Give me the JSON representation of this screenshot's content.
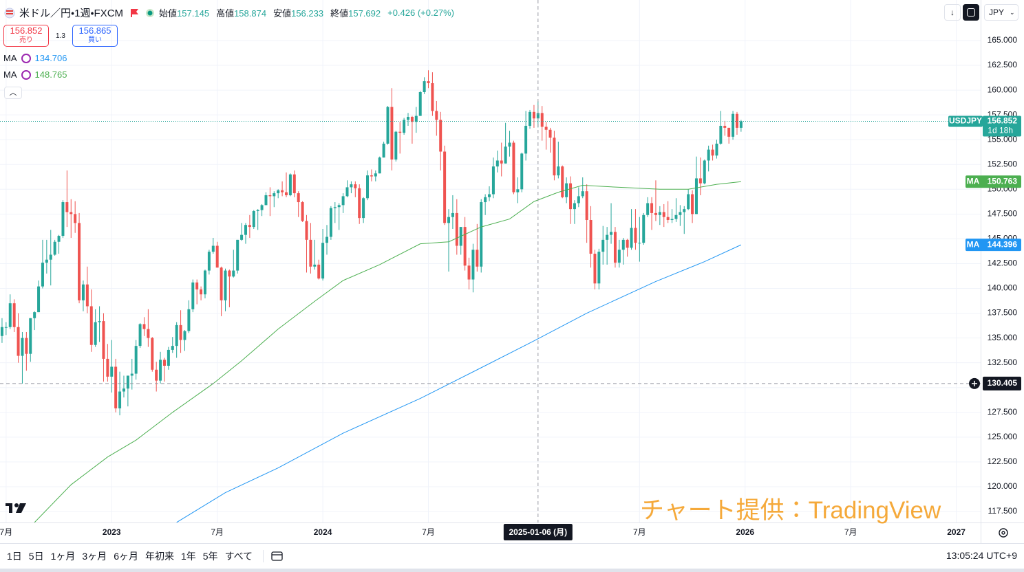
{
  "header": {
    "symbol": "米ドル／円・1週・FXCM",
    "ohlc": [
      {
        "label": "始値",
        "value": "157.145"
      },
      {
        "label": "高値",
        "value": "158.874"
      },
      {
        "label": "安値",
        "value": "156.233"
      },
      {
        "label": "終値",
        "value": "157.692"
      }
    ],
    "change": "+0.426 (+0.27%)"
  },
  "trade": {
    "sell_price": "156.852",
    "sell_label": "売り",
    "spread": "1.3",
    "buy_price": "156.865",
    "buy_label": "買い"
  },
  "indicators": [
    {
      "name": "MA",
      "value": "134.706"
    },
    {
      "name": "MA",
      "value": "148.765"
    }
  ],
  "currency": "JPY",
  "watermark": "チャート提供：TradingView",
  "toolbar": {
    "ranges": [
      "1日",
      "5日",
      "1ヶ月",
      "3ヶ月",
      "6ヶ月",
      "年初来",
      "1年",
      "5年",
      "すべて"
    ],
    "clock": "13:05:24 UTC+9"
  },
  "chart_data": {
    "type": "candlestick",
    "ticker": "USDJPY",
    "countdown": "1d 18h",
    "up_color": "#26a69a",
    "down_color": "#ef5350",
    "grid": true,
    "xlim": [
      -0.5,
      241
    ],
    "xticks": [
      {
        "value": 1,
        "label": "7月"
      },
      {
        "value": 27,
        "label": "2023"
      },
      {
        "value": 53,
        "label": "7月"
      },
      {
        "value": 79,
        "label": "2024"
      },
      {
        "value": 105,
        "label": "7月"
      },
      {
        "value": 157,
        "label": "7月"
      },
      {
        "value": 183,
        "label": "2026"
      },
      {
        "value": 209,
        "label": "7月"
      },
      {
        "value": 235,
        "label": "2027"
      }
    ],
    "ylim": [
      116.39,
      169.09
    ],
    "yticks": [
      {
        "value": 117.5,
        "label": "117.500"
      },
      {
        "value": 120,
        "label": "120.000"
      },
      {
        "value": 122.5,
        "label": "122.500"
      },
      {
        "value": 125,
        "label": "125.000"
      },
      {
        "value": 127.5,
        "label": "127.500"
      },
      {
        "value": 130,
        "label": "130.000"
      },
      {
        "value": 132.5,
        "label": "132.500"
      },
      {
        "value": 135,
        "label": "135.000"
      },
      {
        "value": 137.5,
        "label": "137.500"
      },
      {
        "value": 140,
        "label": "140.000"
      },
      {
        "value": 142.5,
        "label": "142.500"
      },
      {
        "value": 145,
        "label": "145.000"
      },
      {
        "value": 147.5,
        "label": "147.500"
      },
      {
        "value": 150,
        "label": "150.000"
      },
      {
        "value": 152.5,
        "label": "152.500"
      },
      {
        "value": 155,
        "label": "155.000"
      },
      {
        "value": 157.5,
        "label": "157.500"
      },
      {
        "value": 160,
        "label": "160.000"
      },
      {
        "value": 162.5,
        "label": "162.500"
      },
      {
        "value": 165,
        "label": "165.000"
      }
    ],
    "crosshair": {
      "index": 132,
      "date_label": "2025-01-06 (月)",
      "price": 130.405
    },
    "ohlc": [
      [
        135.2,
        137.0,
        134.5,
        136.1
      ],
      [
        136.1,
        136.6,
        135.3,
        136.1
      ],
      [
        136.1,
        139.4,
        135.9,
        138.5
      ],
      [
        138.5,
        138.9,
        135.6,
        136.1
      ],
      [
        136.1,
        137.5,
        132.5,
        133.2
      ],
      [
        133.2,
        135.6,
        130.4,
        135.0
      ],
      [
        135.0,
        135.6,
        131.7,
        133.4
      ],
      [
        133.4,
        137.0,
        132.6,
        137.0
      ],
      [
        137.0,
        137.7,
        135.8,
        137.6
      ],
      [
        137.6,
        140.8,
        137.6,
        140.2
      ],
      [
        140.2,
        144.9,
        140.0,
        142.6
      ],
      [
        142.6,
        144.9,
        141.5,
        142.9
      ],
      [
        142.9,
        145.9,
        140.3,
        143.4
      ],
      [
        143.4,
        144.9,
        143.3,
        144.7
      ],
      [
        144.7,
        145.4,
        143.5,
        145.3
      ],
      [
        145.3,
        148.9,
        145.1,
        148.7
      ],
      [
        148.7,
        151.9,
        146.2,
        147.7
      ],
      [
        147.7,
        149.0,
        145.1,
        147.5
      ],
      [
        147.5,
        148.8,
        145.6,
        146.6
      ],
      [
        146.6,
        147.6,
        138.5,
        138.8
      ],
      [
        138.8,
        140.8,
        137.7,
        140.4
      ],
      [
        140.4,
        142.2,
        137.5,
        138.2
      ],
      [
        138.2,
        139.9,
        133.6,
        134.3
      ],
      [
        134.3,
        137.9,
        134.1,
        136.6
      ],
      [
        136.6,
        138.2,
        134.6,
        136.7
      ],
      [
        136.7,
        137.5,
        130.6,
        132.9
      ],
      [
        132.9,
        134.4,
        130.6,
        131.1
      ],
      [
        131.1,
        134.8,
        129.5,
        132.1
      ],
      [
        132.1,
        132.9,
        127.5,
        127.9
      ],
      [
        127.9,
        131.6,
        127.2,
        129.6
      ],
      [
        129.6,
        131.2,
        129.0,
        129.9
      ],
      [
        129.9,
        131.2,
        128.1,
        131.2
      ],
      [
        131.2,
        132.9,
        129.8,
        131.4
      ],
      [
        131.4,
        134.8,
        130.8,
        134.2
      ],
      [
        134.2,
        136.5,
        134.0,
        136.4
      ],
      [
        136.4,
        137.1,
        135.2,
        135.9
      ],
      [
        135.9,
        137.9,
        134.1,
        135.0
      ],
      [
        135.0,
        135.1,
        131.6,
        131.8
      ],
      [
        131.8,
        132.6,
        129.6,
        130.7
      ],
      [
        130.7,
        133.6,
        130.4,
        132.8
      ],
      [
        132.8,
        133.0,
        130.6,
        132.2
      ],
      [
        132.2,
        134.1,
        131.8,
        133.8
      ],
      [
        133.8,
        135.1,
        133.5,
        134.2
      ],
      [
        134.2,
        136.6,
        133.0,
        136.3
      ],
      [
        136.3,
        137.8,
        133.5,
        134.8
      ],
      [
        134.8,
        135.8,
        133.7,
        135.7
      ],
      [
        135.7,
        138.8,
        135.5,
        137.9
      ],
      [
        137.9,
        140.9,
        137.6,
        140.6
      ],
      [
        140.6,
        140.9,
        138.4,
        139.9
      ],
      [
        139.9,
        140.2,
        138.8,
        139.4
      ],
      [
        139.4,
        141.9,
        139.0,
        141.8
      ],
      [
        141.8,
        143.9,
        141.4,
        143.7
      ],
      [
        143.7,
        145.1,
        143.5,
        144.3
      ],
      [
        144.3,
        144.7,
        142.1,
        142.1
      ],
      [
        142.1,
        142.2,
        137.2,
        138.8
      ],
      [
        138.8,
        142.0,
        137.7,
        141.8
      ],
      [
        141.8,
        141.9,
        138.1,
        141.2
      ],
      [
        141.2,
        143.9,
        141.1,
        141.8
      ],
      [
        141.8,
        144.9,
        141.5,
        144.9
      ],
      [
        144.9,
        146.6,
        144.8,
        145.4
      ],
      [
        145.4,
        146.6,
        144.5,
        146.4
      ],
      [
        146.4,
        147.4,
        145.1,
        146.2
      ],
      [
        146.2,
        147.9,
        146.0,
        147.8
      ],
      [
        147.8,
        148.0,
        145.9,
        147.9
      ],
      [
        147.9,
        148.5,
        147.3,
        148.4
      ],
      [
        148.4,
        149.7,
        148.4,
        149.4
      ],
      [
        149.4,
        150.2,
        147.3,
        149.3
      ],
      [
        149.3,
        149.8,
        148.2,
        149.6
      ],
      [
        149.6,
        150.0,
        149.1,
        149.9
      ],
      [
        149.9,
        150.8,
        149.3,
        149.7
      ],
      [
        149.7,
        151.7,
        149.2,
        149.4
      ],
      [
        149.4,
        151.6,
        149.3,
        151.5
      ],
      [
        151.5,
        151.9,
        149.2,
        149.6
      ],
      [
        149.6,
        149.8,
        147.2,
        148.7
      ],
      [
        148.7,
        148.8,
        146.7,
        146.8
      ],
      [
        146.8,
        147.4,
        141.6,
        144.9
      ],
      [
        144.9,
        146.6,
        141.5,
        142.2
      ],
      [
        142.2,
        144.9,
        141.9,
        142.4
      ],
      [
        142.4,
        142.9,
        140.9,
        141.0
      ],
      [
        141.0,
        146.0,
        140.8,
        144.6
      ],
      [
        144.6,
        146.4,
        143.4,
        145.2
      ],
      [
        145.2,
        148.3,
        144.9,
        148.1
      ],
      [
        148.1,
        148.7,
        146.6,
        148.2
      ],
      [
        148.2,
        148.6,
        145.9,
        148.4
      ],
      [
        148.4,
        149.6,
        147.6,
        149.3
      ],
      [
        149.3,
        150.9,
        149.2,
        150.2
      ],
      [
        150.2,
        150.8,
        149.6,
        150.5
      ],
      [
        150.5,
        150.8,
        149.2,
        150.1
      ],
      [
        150.1,
        150.5,
        146.5,
        147.1
      ],
      [
        147.1,
        149.2,
        146.6,
        149.1
      ],
      [
        149.1,
        151.9,
        148.9,
        151.4
      ],
      [
        151.4,
        152.0,
        150.8,
        151.3
      ],
      [
        151.3,
        151.9,
        150.8,
        151.6
      ],
      [
        151.6,
        153.3,
        151.6,
        153.2
      ],
      [
        153.2,
        154.8,
        153.2,
        154.6
      ],
      [
        154.6,
        158.4,
        154.5,
        158.3
      ],
      [
        158.3,
        160.2,
        151.9,
        153.0
      ],
      [
        153.0,
        155.9,
        152.8,
        155.8
      ],
      [
        155.8,
        156.8,
        153.6,
        155.7
      ],
      [
        155.7,
        157.2,
        155.5,
        157.0
      ],
      [
        157.0,
        157.7,
        156.4,
        157.3
      ],
      [
        157.3,
        157.4,
        154.6,
        156.8
      ],
      [
        156.8,
        158.3,
        155.7,
        157.4
      ],
      [
        157.4,
        159.9,
        157.4,
        159.8
      ],
      [
        159.8,
        161.3,
        159.6,
        160.9
      ],
      [
        160.9,
        162.0,
        160.2,
        160.7
      ],
      [
        160.7,
        161.8,
        157.4,
        157.9
      ],
      [
        157.9,
        158.9,
        155.4,
        157.0
      ],
      [
        157.0,
        157.8,
        151.9,
        153.8
      ],
      [
        153.8,
        154.4,
        146.4,
        146.6
      ],
      [
        146.6,
        148.0,
        141.7,
        147.2
      ],
      [
        147.2,
        149.4,
        146.0,
        147.6
      ],
      [
        147.6,
        149.0,
        143.4,
        144.3
      ],
      [
        144.3,
        146.2,
        143.4,
        146.2
      ],
      [
        146.2,
        147.2,
        141.8,
        142.3
      ],
      [
        142.3,
        143.1,
        139.9,
        140.9
      ],
      [
        140.9,
        144.5,
        139.6,
        143.9
      ],
      [
        143.9,
        146.5,
        141.7,
        142.2
      ],
      [
        142.2,
        149.0,
        141.6,
        148.7
      ],
      [
        148.7,
        149.5,
        147.4,
        149.2
      ],
      [
        149.2,
        150.3,
        148.8,
        149.5
      ],
      [
        149.5,
        153.2,
        149.1,
        152.3
      ],
      [
        152.3,
        153.9,
        151.7,
        152.9
      ],
      [
        152.9,
        154.7,
        151.3,
        152.6
      ],
      [
        152.6,
        156.7,
        152.6,
        154.3
      ],
      [
        154.3,
        155.9,
        153.3,
        154.7
      ],
      [
        154.7,
        154.9,
        149.5,
        149.7
      ],
      [
        149.7,
        151.2,
        148.6,
        150.0
      ],
      [
        150.0,
        153.7,
        149.7,
        153.6
      ],
      [
        153.6,
        157.9,
        152.9,
        156.4
      ],
      [
        156.4,
        158.0,
        156.1,
        157.8
      ],
      [
        157.8,
        158.5,
        156.2,
        157.145
      ],
      [
        157.145,
        158.874,
        156.233,
        157.692
      ],
      [
        157.692,
        158.4,
        154.9,
        156.3
      ],
      [
        156.3,
        156.8,
        154.0,
        156.0
      ],
      [
        156.0,
        156.2,
        153.7,
        155.2
      ],
      [
        155.2,
        155.9,
        150.9,
        151.4
      ],
      [
        151.4,
        154.8,
        151.1,
        152.3
      ],
      [
        152.3,
        152.4,
        149.1,
        149.2
      ],
      [
        149.2,
        151.2,
        148.6,
        150.6
      ],
      [
        150.6,
        151.3,
        146.5,
        148.0
      ],
      [
        148.0,
        148.9,
        146.5,
        148.6
      ],
      [
        148.6,
        150.2,
        148.2,
        149.3
      ],
      [
        149.3,
        151.2,
        149.1,
        149.8
      ],
      [
        149.8,
        150.5,
        144.6,
        146.9
      ],
      [
        146.9,
        148.3,
        142.1,
        143.5
      ],
      [
        143.5,
        143.9,
        139.9,
        140.5
      ],
      [
        140.5,
        144.0,
        139.9,
        143.7
      ],
      [
        143.7,
        146.3,
        142.4,
        144.9
      ],
      [
        144.9,
        146.2,
        142.4,
        145.4
      ],
      [
        145.4,
        148.6,
        144.5,
        145.7
      ],
      [
        145.7,
        146.2,
        142.1,
        142.6
      ],
      [
        142.6,
        144.9,
        142.1,
        143.9
      ],
      [
        143.9,
        145.1,
        142.4,
        144.9
      ],
      [
        144.9,
        145.0,
        143.2,
        144.1
      ],
      [
        144.1,
        148.0,
        143.9,
        146.1
      ],
      [
        146.1,
        148.0,
        143.9,
        144.6
      ],
      [
        144.6,
        147.2,
        142.7,
        144.6
      ],
      [
        144.6,
        147.6,
        144.4,
        147.4
      ],
      [
        147.4,
        149.2,
        147.2,
        148.6
      ],
      [
        148.6,
        149.2,
        145.9,
        147.6
      ],
      [
        147.6,
        150.9,
        146.8,
        147.4
      ],
      [
        147.4,
        148.3,
        146.4,
        147.7
      ],
      [
        147.7,
        148.5,
        146.2,
        147.2
      ],
      [
        147.2,
        148.8,
        146.6,
        146.9
      ],
      [
        146.9,
        148.0,
        146.6,
        147.0
      ],
      [
        147.0,
        149.1,
        146.7,
        147.4
      ],
      [
        147.4,
        148.4,
        146.3,
        147.7
      ],
      [
        147.7,
        148.3,
        145.5,
        148.0
      ],
      [
        148.0,
        150.0,
        147.9,
        149.5
      ],
      [
        149.5,
        149.9,
        146.6,
        147.5
      ],
      [
        147.5,
        153.3,
        147.5,
        151.1
      ],
      [
        151.1,
        153.2,
        149.4,
        150.6
      ],
      [
        150.6,
        153.0,
        150.5,
        152.9
      ],
      [
        152.9,
        154.4,
        151.8,
        154.0
      ],
      [
        154.0,
        154.5,
        152.9,
        153.4
      ],
      [
        153.4,
        155.0,
        153.1,
        154.6
      ],
      [
        154.6,
        157.9,
        154.5,
        156.4
      ],
      [
        156.4,
        156.9,
        155.4,
        156.2
      ],
      [
        156.2,
        156.2,
        154.6,
        155.3
      ],
      [
        155.3,
        157.9,
        155.0,
        157.6
      ],
      [
        157.6,
        157.8,
        155.5,
        156.2
      ],
      [
        156.2,
        157.0,
        155.8,
        156.852
      ]
    ],
    "series": [
      {
        "name": "MA",
        "color": "#4caf50",
        "x": [
          8,
          17,
          26,
          33,
          42,
          52,
          59,
          68,
          77,
          84,
          93,
          103,
          110,
          118,
          125,
          131,
          137,
          143,
          152,
          162,
          169,
          176,
          182
        ],
        "values": [
          116.4,
          120.2,
          123.0,
          124.7,
          127.5,
          130.4,
          132.7,
          135.9,
          138.7,
          140.8,
          142.4,
          144.5,
          144.7,
          146.2,
          147.0,
          148.765,
          149.7,
          150.4,
          150.2,
          150.0,
          150.0,
          150.5,
          150.763
        ]
      },
      {
        "name": "MA",
        "color": "#2196f3",
        "x": [
          43,
          55,
          68,
          84,
          103,
          118,
          131,
          144,
          161,
          173,
          182
        ],
        "values": [
          116.4,
          119.4,
          121.9,
          125.4,
          128.9,
          132.0,
          134.706,
          137.5,
          140.7,
          142.7,
          144.396
        ]
      }
    ]
  }
}
